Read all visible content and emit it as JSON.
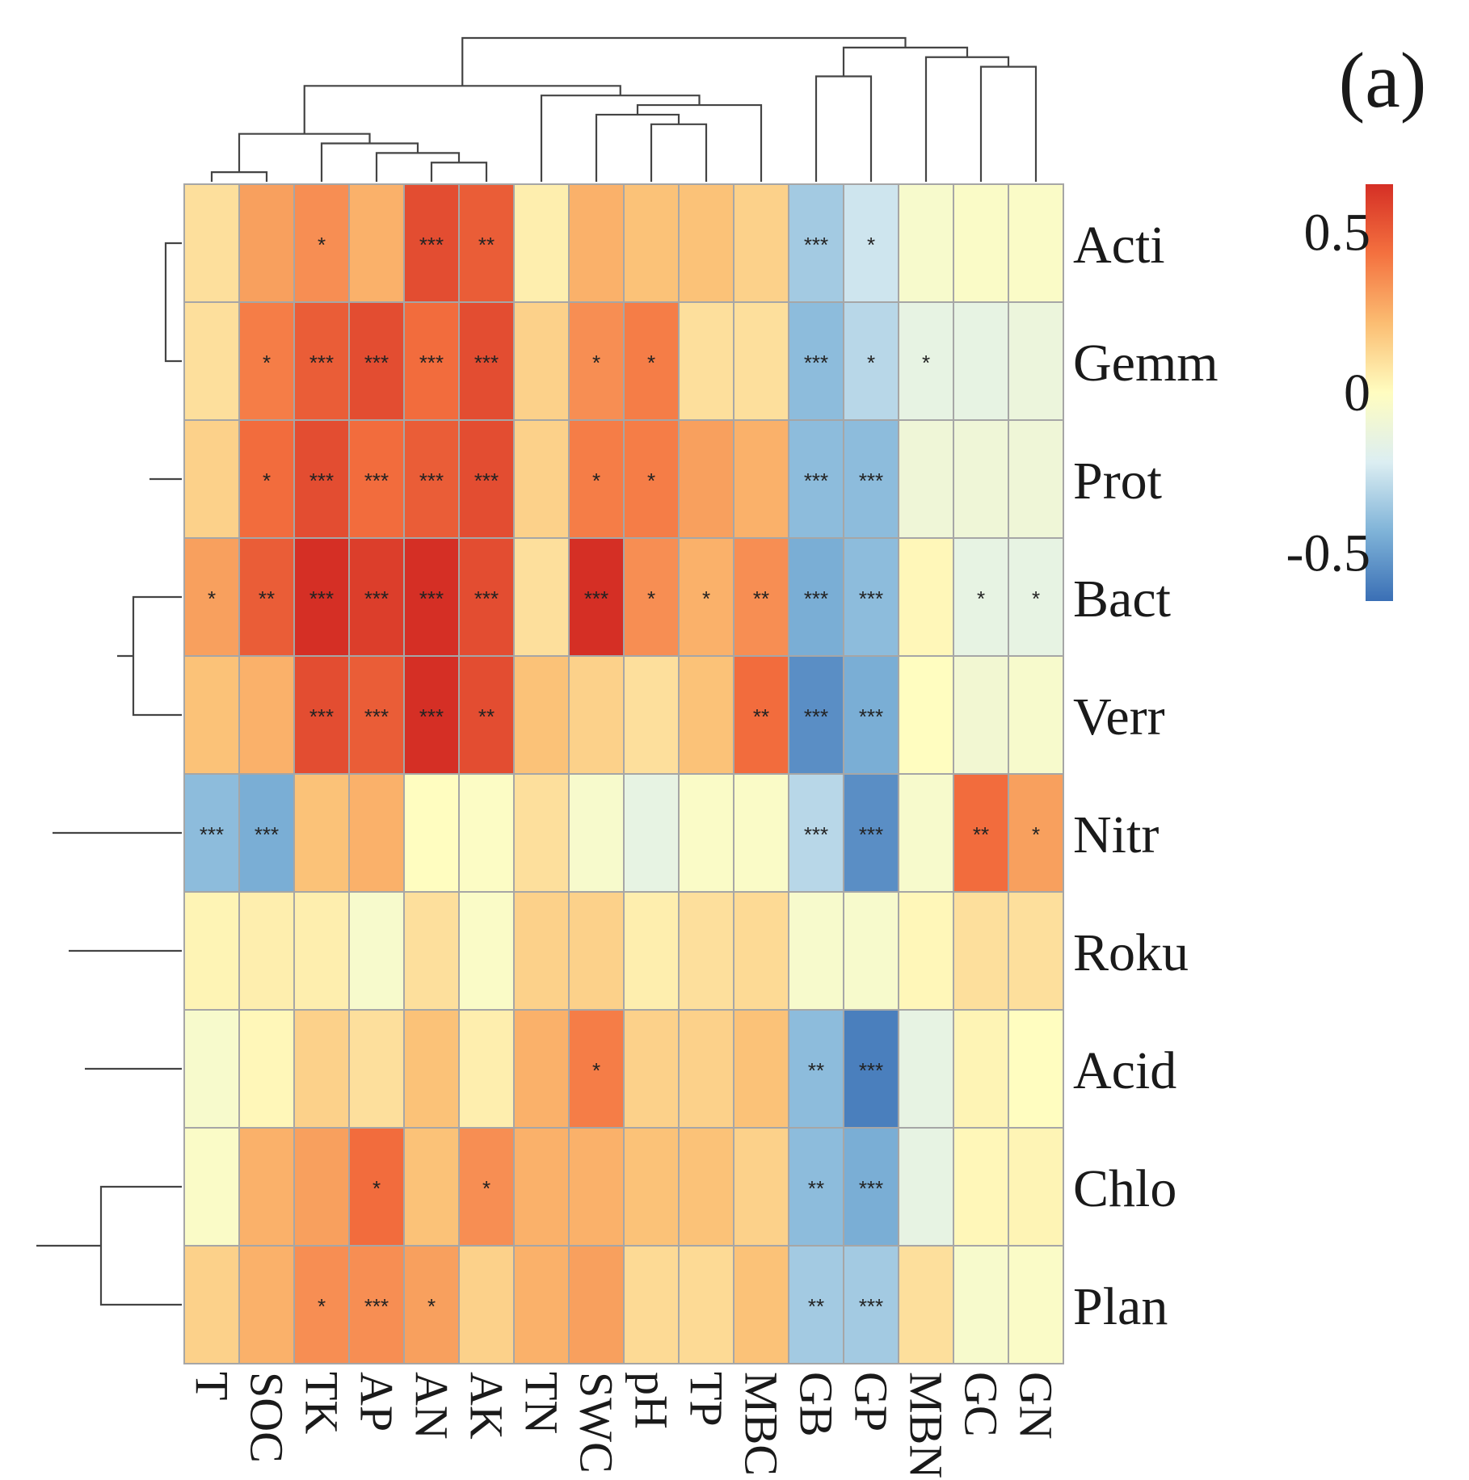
{
  "chart_data": {
    "type": "heatmap",
    "panel_label": "(a)",
    "columns": [
      "T",
      "SOC",
      "TK",
      "AP",
      "AN",
      "AK",
      "TN",
      "SWC",
      "pH",
      "TP",
      "MBC",
      "GB",
      "GP",
      "MBN",
      "GC",
      "GN"
    ],
    "rows": [
      "Acti",
      "Gemm",
      "Prot",
      "Bact",
      "Verr",
      "Nitr",
      "Roku",
      "Acid",
      "Chlo",
      "Plan"
    ],
    "values": [
      [
        0.1,
        0.3,
        0.35,
        0.25,
        0.55,
        0.5,
        0.05,
        0.25,
        0.2,
        0.2,
        0.15,
        -0.35,
        -0.25,
        -0.05,
        -0.03,
        -0.03
      ],
      [
        0.1,
        0.4,
        0.5,
        0.55,
        0.45,
        0.55,
        0.15,
        0.35,
        0.4,
        0.1,
        0.1,
        -0.4,
        -0.3,
        -0.15,
        -0.15,
        -0.12
      ],
      [
        0.15,
        0.45,
        0.55,
        0.45,
        0.5,
        0.55,
        0.15,
        0.4,
        0.4,
        0.3,
        0.25,
        -0.4,
        -0.4,
        -0.1,
        -0.1,
        -0.1
      ],
      [
        0.3,
        0.5,
        0.65,
        0.6,
        0.65,
        0.55,
        0.1,
        0.65,
        0.35,
        0.25,
        0.35,
        -0.45,
        -0.4,
        0.02,
        -0.15,
        -0.15
      ],
      [
        0.2,
        0.25,
        0.55,
        0.5,
        0.7,
        0.55,
        0.2,
        0.15,
        0.1,
        0.2,
        0.45,
        -0.55,
        -0.45,
        0.0,
        -0.08,
        -0.05
      ],
      [
        -0.4,
        -0.45,
        0.2,
        0.25,
        0.0,
        -0.02,
        0.1,
        -0.05,
        -0.15,
        -0.03,
        -0.03,
        -0.3,
        -0.55,
        -0.05,
        0.45,
        0.3
      ],
      [
        0.03,
        0.05,
        0.05,
        -0.05,
        0.1,
        -0.03,
        0.15,
        0.15,
        0.05,
        0.1,
        0.12,
        -0.05,
        -0.05,
        0.02,
        0.1,
        0.1
      ],
      [
        -0.05,
        0.02,
        0.15,
        0.1,
        0.2,
        0.05,
        0.25,
        0.4,
        0.15,
        0.15,
        0.2,
        -0.4,
        -0.6,
        -0.15,
        0.03,
        0.0
      ],
      [
        -0.03,
        0.25,
        0.3,
        0.45,
        0.2,
        0.35,
        0.25,
        0.25,
        0.2,
        0.2,
        0.15,
        -0.4,
        -0.45,
        -0.15,
        0.02,
        0.03
      ],
      [
        0.15,
        0.25,
        0.35,
        0.35,
        0.3,
        0.15,
        0.25,
        0.3,
        0.12,
        0.12,
        0.2,
        -0.35,
        -0.35,
        0.1,
        -0.05,
        -0.03
      ]
    ],
    "significance": [
      [
        "",
        "",
        "*",
        "",
        "***",
        "**",
        "",
        "",
        "",
        "",
        "",
        "***",
        "*",
        "",
        "",
        ""
      ],
      [
        "",
        "*",
        "***",
        "***",
        "***",
        "***",
        "",
        "*",
        "*",
        "",
        "",
        "***",
        "*",
        "*",
        "",
        ""
      ],
      [
        "",
        "*",
        "***",
        "***",
        "***",
        "***",
        "",
        "*",
        "*",
        "",
        "",
        "***",
        "***",
        "",
        "",
        ""
      ],
      [
        "*",
        "**",
        "***",
        "***",
        "***",
        "***",
        "",
        "***",
        "*",
        "*",
        "**",
        "***",
        "***",
        "",
        "*",
        "*"
      ],
      [
        "",
        "",
        "***",
        "***",
        "***",
        "**",
        "",
        "",
        "",
        "",
        "**",
        "***",
        "***",
        "",
        "",
        ""
      ],
      [
        "***",
        "***",
        "",
        "",
        "",
        "",
        "",
        "",
        "",
        "",
        "",
        "***",
        "***",
        "",
        "**",
        "*"
      ],
      [
        "",
        "",
        "",
        "",
        "",
        "",
        "",
        "",
        "",
        "",
        "",
        "",
        "",
        "",
        "",
        ""
      ],
      [
        "",
        "",
        "",
        "",
        "",
        "",
        "",
        "*",
        "",
        "",
        "",
        "**",
        "***",
        "",
        "",
        ""
      ],
      [
        "",
        "",
        "",
        "*",
        "",
        "*",
        "",
        "",
        "",
        "",
        "",
        "**",
        "***",
        "",
        "",
        ""
      ],
      [
        "",
        "",
        "*",
        "***",
        "*",
        "",
        "",
        "",
        "",
        "",
        "",
        "**",
        "***",
        "",
        "",
        ""
      ]
    ],
    "colorbar": {
      "range": [
        -0.65,
        0.65
      ],
      "ticks": [
        0.5,
        0,
        -0.5
      ],
      "tick_labels": [
        "0.5",
        "0",
        "-0.5"
      ],
      "colors": [
        "#3a6fb5",
        "#7fb3d8",
        "#dceef2",
        "#fffdc0",
        "#fbbd72",
        "#f4713f",
        "#d52f25"
      ]
    },
    "col_dendrogram": [
      [
        0,
        1
      ],
      [
        4,
        5
      ],
      [
        3,
        17
      ],
      [
        2,
        18
      ],
      [
        16,
        19
      ],
      [
        8,
        9
      ],
      [
        7,
        21
      ],
      [
        10,
        22
      ],
      [
        6,
        23
      ],
      [
        20,
        24
      ],
      [
        11,
        12
      ],
      [
        14,
        15
      ],
      [
        13,
        27
      ],
      [
        26,
        28
      ],
      [
        25,
        29
      ]
    ],
    "row_dendrogram": [
      [
        0,
        1
      ],
      [
        2,
        11
      ],
      [
        3,
        4
      ],
      [
        12,
        13
      ],
      [
        8,
        9
      ],
      [
        7,
        15
      ],
      [
        6,
        16
      ],
      [
        5,
        17
      ],
      [
        14,
        18
      ]
    ]
  }
}
